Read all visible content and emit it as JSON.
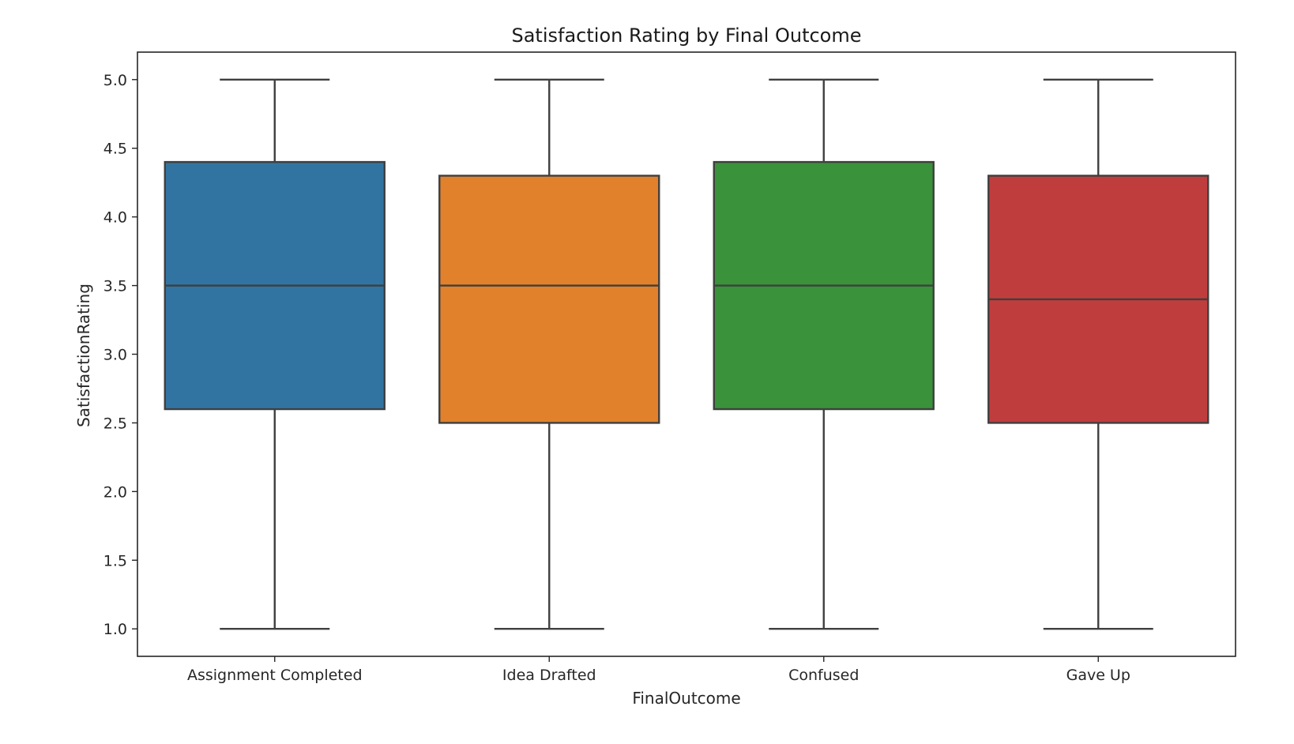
{
  "chart_data": {
    "type": "box",
    "title": "Satisfaction Rating by Final Outcome",
    "xlabel": "FinalOutcome",
    "ylabel": "SatisfactionRating",
    "ylim": [
      0.8,
      5.2
    ],
    "yticks": [
      1.0,
      1.5,
      2.0,
      2.5,
      3.0,
      3.5,
      4.0,
      4.5,
      5.0
    ],
    "ytick_labels": [
      "1.0",
      "1.5",
      "2.0",
      "2.5",
      "3.0",
      "3.5",
      "4.0",
      "4.5",
      "5.0"
    ],
    "grid": false,
    "categories": [
      "Assignment Completed",
      "Idea Drafted",
      "Confused",
      "Gave Up"
    ],
    "boxes": [
      {
        "category": "Assignment Completed",
        "min": 1.0,
        "q1": 2.6,
        "median": 3.5,
        "q3": 4.4,
        "max": 5.0,
        "color": "#3274a1"
      },
      {
        "category": "Idea Drafted",
        "min": 1.0,
        "q1": 2.5,
        "median": 3.5,
        "q3": 4.3,
        "max": 5.0,
        "color": "#e1812c"
      },
      {
        "category": "Confused",
        "min": 1.0,
        "q1": 2.6,
        "median": 3.5,
        "q3": 4.4,
        "max": 5.0,
        "color": "#3a923a"
      },
      {
        "category": "Gave Up",
        "min": 1.0,
        "q1": 2.5,
        "median": 3.4,
        "q3": 4.3,
        "max": 5.0,
        "color": "#c03d3e"
      }
    ],
    "line_color": "#3f3f3f"
  }
}
